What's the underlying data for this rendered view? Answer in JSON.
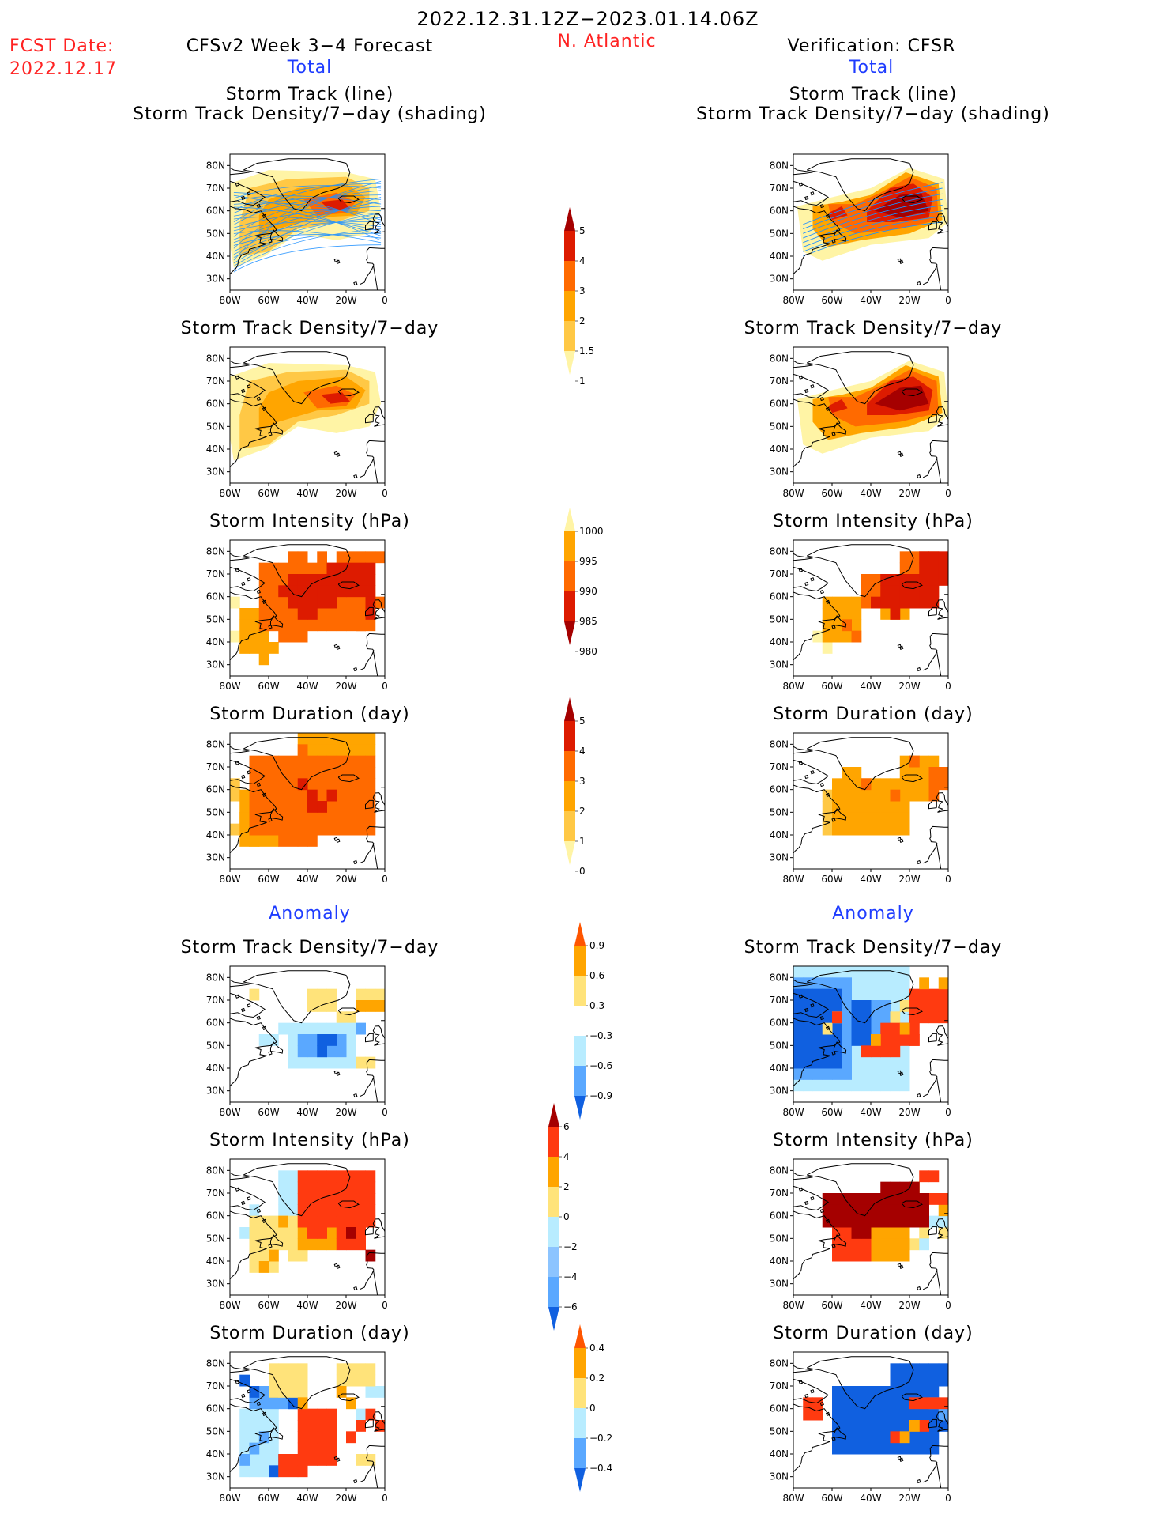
{
  "header": {
    "period": "2022.12.31.12Z−2023.01.14.06Z",
    "fcst_label": "FCST Date:",
    "fcst_date": "2022.12.17",
    "left_title": "CFSv2 Week 3−4 Forecast",
    "region": "N. Atlantic",
    "right_title": "Verification: CFSR",
    "total_left": "Total",
    "total_right": "Total",
    "anomaly_left": "Anomaly",
    "anomaly_right": "Anomaly"
  },
  "panel_titles": {
    "track_line": "Storm Track (line)",
    "track_shading": "Storm Track Density/7−day (shading)",
    "density": "Storm Track Density/7−day",
    "intensity": "Storm Intensity (hPa)",
    "duration": "Storm Duration (day)"
  },
  "axes": {
    "lat_labels": [
      "80N",
      "70N",
      "60N",
      "50N",
      "40N",
      "30N"
    ],
    "lon_labels": [
      "80W",
      "60W",
      "40W",
      "20W",
      "0"
    ]
  },
  "colorbars": {
    "density": {
      "labels": [
        "5",
        "4",
        "3",
        "2",
        "1.5",
        "1"
      ],
      "colors": [
        "#a50000",
        "#dd1b00",
        "#ff6a00",
        "#ffa500",
        "#ffc845",
        "#fff4a5"
      ]
    },
    "intensity": {
      "labels": [
        "1000",
        "995",
        "990",
        "985",
        "980"
      ],
      "colors": [
        "#fff4a5",
        "#ffa500",
        "#ff6a00",
        "#dd1b00",
        "#a50000"
      ]
    },
    "duration": {
      "labels": [
        "5",
        "4",
        "3",
        "2",
        "1",
        "0"
      ],
      "colors": [
        "#a50000",
        "#dd1b00",
        "#ff6a00",
        "#ffa500",
        "#ffc845",
        "#fff4a5"
      ]
    },
    "anom_density": {
      "labels": [
        "0.9",
        "0.6",
        "0.3",
        "−0.3",
        "−0.6",
        "−0.9"
      ],
      "colors": [
        "#ff5500",
        "#ffa500",
        "#ffe37a",
        "#ffffff",
        "#b8ecff",
        "#5aa8ff",
        "#1060e0"
      ]
    },
    "anom_intensity": {
      "labels": [
        "6",
        "4",
        "2",
        "0",
        "−2",
        "−4",
        "−6"
      ],
      "colors": [
        "#a50000",
        "#ff3a10",
        "#ffa500",
        "#ffe37a",
        "#b8ecff",
        "#8cc4ff",
        "#5aa8ff",
        "#1060e0"
      ]
    },
    "anom_duration": {
      "labels": [
        "0.4",
        "0.2",
        "0",
        "−0.2",
        "−0.4"
      ],
      "colors": [
        "#ff5500",
        "#ffa500",
        "#ffe37a",
        "#b8ecff",
        "#5aa8ff",
        "#1060e0"
      ]
    }
  }
}
